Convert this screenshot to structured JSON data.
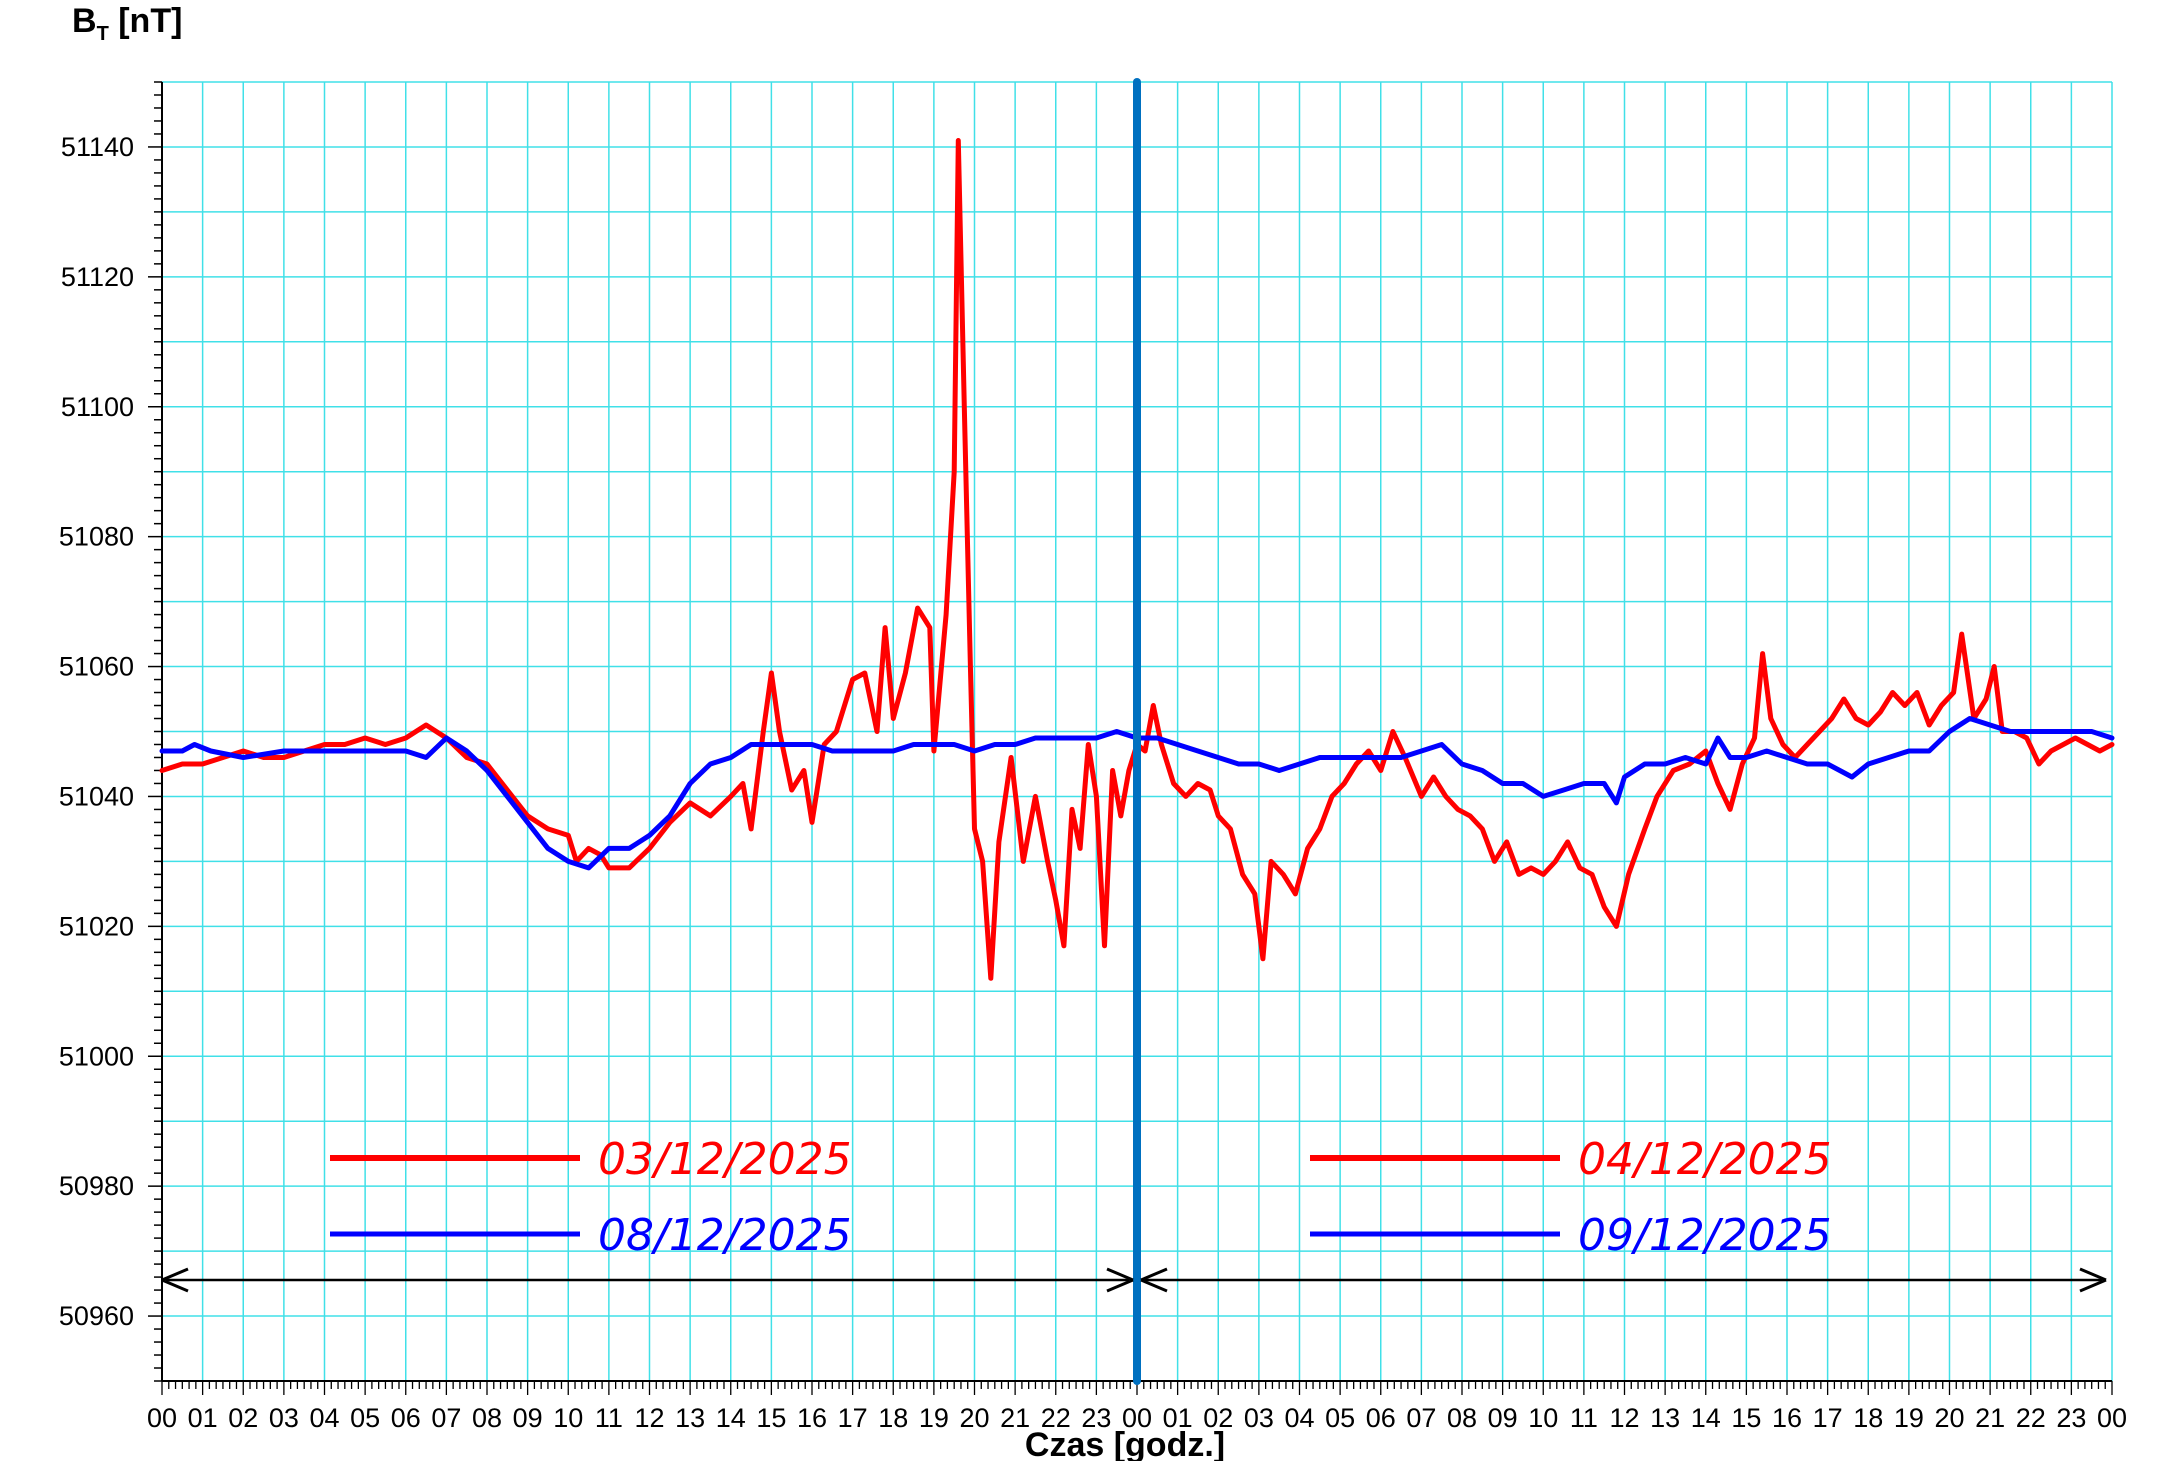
{
  "chart_data": {
    "type": "line",
    "ylabel": "B",
    "ylabel_sub": "T",
    "ylabel_unit": "[nT]",
    "xlabel": "Czas [godz.]",
    "ylim": [
      50950,
      51150
    ],
    "yticks": [
      50960,
      50980,
      51000,
      51020,
      51040,
      51060,
      51080,
      51100,
      51120,
      51140
    ],
    "xlim_hours": [
      0,
      48
    ],
    "xtick_labels": [
      "00",
      "01",
      "02",
      "03",
      "04",
      "05",
      "06",
      "07",
      "08",
      "09",
      "10",
      "11",
      "12",
      "13",
      "14",
      "15",
      "16",
      "17",
      "18",
      "19",
      "20",
      "21",
      "22",
      "23",
      "00",
      "01",
      "02",
      "03",
      "04",
      "05",
      "06",
      "07",
      "08",
      "09",
      "10",
      "11",
      "12",
      "13",
      "14",
      "15",
      "16",
      "17",
      "18",
      "19",
      "20",
      "21",
      "22",
      "23",
      "00"
    ],
    "grid": true,
    "divider_hour": 24,
    "colors": {
      "red": "#ff0000",
      "blue": "#0000ff",
      "divider": "#0070c0",
      "grid": "#40e0e8"
    },
    "legend": {
      "left": [
        {
          "label": "03/12/2025",
          "color": "#ff0000"
        },
        {
          "label": "08/12/2025",
          "color": "#0000ff"
        }
      ],
      "right": [
        {
          "label": "04/12/2025",
          "color": "#ff0000"
        },
        {
          "label": "09/12/2025",
          "color": "#0000ff"
        }
      ]
    },
    "series": [
      {
        "color": "#ff0000",
        "points": [
          [
            0,
            51044
          ],
          [
            0.5,
            51045
          ],
          [
            1,
            51045
          ],
          [
            1.5,
            51046
          ],
          [
            2,
            51047
          ],
          [
            2.5,
            51046
          ],
          [
            3,
            51046
          ],
          [
            3.5,
            51047
          ],
          [
            4,
            51048
          ],
          [
            4.5,
            51048
          ],
          [
            5,
            51049
          ],
          [
            5.5,
            51048
          ],
          [
            6,
            51049
          ],
          [
            6.5,
            51051
          ],
          [
            7,
            51049
          ],
          [
            7.5,
            51046
          ],
          [
            8,
            51045
          ],
          [
            8.5,
            51041
          ],
          [
            9,
            51037
          ],
          [
            9.5,
            51035
          ],
          [
            10,
            51034
          ],
          [
            10.2,
            51030
          ],
          [
            10.5,
            51032
          ],
          [
            10.8,
            51031
          ],
          [
            11,
            51029
          ],
          [
            11.5,
            51029
          ],
          [
            12,
            51032
          ],
          [
            12.5,
            51036
          ],
          [
            13,
            51039
          ],
          [
            13.5,
            51037
          ],
          [
            14,
            51040
          ],
          [
            14.3,
            51042
          ],
          [
            14.5,
            51035
          ],
          [
            14.8,
            51050
          ],
          [
            15,
            51059
          ],
          [
            15.2,
            51050
          ],
          [
            15.5,
            51041
          ],
          [
            15.8,
            51044
          ],
          [
            16,
            51036
          ],
          [
            16.3,
            51048
          ],
          [
            16.6,
            51050
          ],
          [
            17,
            51058
          ],
          [
            17.3,
            51059
          ],
          [
            17.6,
            51050
          ],
          [
            17.8,
            51066
          ],
          [
            18,
            51052
          ],
          [
            18.3,
            51059
          ],
          [
            18.6,
            51069
          ],
          [
            18.9,
            51066
          ],
          [
            19,
            51047
          ],
          [
            19.3,
            51068
          ],
          [
            19.5,
            51090
          ],
          [
            19.6,
            51141
          ],
          [
            19.75,
            51100
          ],
          [
            19.9,
            51060
          ],
          [
            20,
            51035
          ],
          [
            20.2,
            51030
          ],
          [
            20.4,
            51012
          ],
          [
            20.6,
            51033
          ],
          [
            20.9,
            51046
          ],
          [
            21.2,
            51030
          ],
          [
            21.5,
            51040
          ],
          [
            21.8,
            51030
          ],
          [
            22,
            51024
          ],
          [
            22.2,
            51017
          ],
          [
            22.4,
            51038
          ],
          [
            22.6,
            51032
          ],
          [
            22.8,
            51048
          ],
          [
            23,
            51040
          ],
          [
            23.2,
            51017
          ],
          [
            23.4,
            51044
          ],
          [
            23.6,
            51037
          ],
          [
            23.8,
            51044
          ],
          [
            24,
            51048
          ],
          [
            24.2,
            51047
          ],
          [
            24.4,
            51054
          ],
          [
            24.6,
            51048
          ],
          [
            24.9,
            51042
          ],
          [
            25.2,
            51040
          ],
          [
            25.5,
            51042
          ],
          [
            25.8,
            51041
          ],
          [
            26,
            51037
          ],
          [
            26.3,
            51035
          ],
          [
            26.6,
            51028
          ],
          [
            26.9,
            51025
          ],
          [
            27.1,
            51015
          ],
          [
            27.3,
            51030
          ],
          [
            27.6,
            51028
          ],
          [
            27.9,
            51025
          ],
          [
            28.2,
            51032
          ],
          [
            28.5,
            51035
          ],
          [
            28.8,
            51040
          ],
          [
            29.1,
            51042
          ],
          [
            29.4,
            51045
          ],
          [
            29.7,
            51047
          ],
          [
            30,
            51044
          ],
          [
            30.3,
            51050
          ],
          [
            30.6,
            51046
          ],
          [
            31,
            51040
          ],
          [
            31.3,
            51043
          ],
          [
            31.6,
            51040
          ],
          [
            31.9,
            51038
          ],
          [
            32.2,
            51037
          ],
          [
            32.5,
            51035
          ],
          [
            32.8,
            51030
          ],
          [
            33.1,
            51033
          ],
          [
            33.4,
            51028
          ],
          [
            33.7,
            51029
          ],
          [
            34,
            51028
          ],
          [
            34.3,
            51030
          ],
          [
            34.6,
            51033
          ],
          [
            34.9,
            51029
          ],
          [
            35.2,
            51028
          ],
          [
            35.5,
            51023
          ],
          [
            35.8,
            51020
          ],
          [
            36.1,
            51028
          ],
          [
            36.5,
            51035
          ],
          [
            36.8,
            51040
          ],
          [
            37.2,
            51044
          ],
          [
            37.6,
            51045
          ],
          [
            38,
            51047
          ],
          [
            38.3,
            51042
          ],
          [
            38.6,
            51038
          ],
          [
            38.9,
            51045
          ],
          [
            39.2,
            51049
          ],
          [
            39.4,
            51062
          ],
          [
            39.6,
            51052
          ],
          [
            39.9,
            51048
          ],
          [
            40.2,
            51046
          ],
          [
            40.5,
            51048
          ],
          [
            40.8,
            51050
          ],
          [
            41.1,
            51052
          ],
          [
            41.4,
            51055
          ],
          [
            41.7,
            51052
          ],
          [
            42,
            51051
          ],
          [
            42.3,
            51053
          ],
          [
            42.6,
            51056
          ],
          [
            42.9,
            51054
          ],
          [
            43.2,
            51056
          ],
          [
            43.5,
            51051
          ],
          [
            43.8,
            51054
          ],
          [
            44.1,
            51056
          ],
          [
            44.3,
            51065
          ],
          [
            44.6,
            51052
          ],
          [
            44.9,
            51055
          ],
          [
            45.1,
            51060
          ],
          [
            45.3,
            51050
          ],
          [
            45.6,
            51050
          ],
          [
            45.9,
            51049
          ],
          [
            46.2,
            51045
          ],
          [
            46.5,
            51047
          ],
          [
            46.8,
            51048
          ],
          [
            47.1,
            51049
          ],
          [
            47.4,
            51048
          ],
          [
            47.7,
            51047
          ],
          [
            48,
            51048
          ]
        ]
      },
      {
        "color": "#0000ff",
        "points": [
          [
            0,
            51047
          ],
          [
            0.5,
            51047
          ],
          [
            0.8,
            51048
          ],
          [
            1.2,
            51047
          ],
          [
            2,
            51046
          ],
          [
            3,
            51047
          ],
          [
            4,
            51047
          ],
          [
            5,
            51047
          ],
          [
            6,
            51047
          ],
          [
            6.5,
            51046
          ],
          [
            7,
            51049
          ],
          [
            7.5,
            51047
          ],
          [
            8,
            51044
          ],
          [
            8.5,
            51040
          ],
          [
            9,
            51036
          ],
          [
            9.5,
            51032
          ],
          [
            10,
            51030
          ],
          [
            10.5,
            51029
          ],
          [
            11,
            51032
          ],
          [
            11.5,
            51032
          ],
          [
            12,
            51034
          ],
          [
            12.5,
            51037
          ],
          [
            13,
            51042
          ],
          [
            13.5,
            51045
          ],
          [
            14,
            51046
          ],
          [
            14.5,
            51048
          ],
          [
            15,
            51048
          ],
          [
            15.5,
            51048
          ],
          [
            16,
            51048
          ],
          [
            16.5,
            51047
          ],
          [
            17,
            51047
          ],
          [
            17.5,
            51047
          ],
          [
            18,
            51047
          ],
          [
            18.5,
            51048
          ],
          [
            19,
            51048
          ],
          [
            19.5,
            51048
          ],
          [
            20,
            51047
          ],
          [
            20.5,
            51048
          ],
          [
            21,
            51048
          ],
          [
            21.5,
            51049
          ],
          [
            22,
            51049
          ],
          [
            22.5,
            51049
          ],
          [
            23,
            51049
          ],
          [
            23.5,
            51050
          ],
          [
            24,
            51049
          ],
          [
            24.5,
            51049
          ],
          [
            25,
            51048
          ],
          [
            25.5,
            51047
          ],
          [
            26,
            51046
          ],
          [
            26.5,
            51045
          ],
          [
            27,
            51045
          ],
          [
            27.5,
            51044
          ],
          [
            28,
            51045
          ],
          [
            28.5,
            51046
          ],
          [
            29,
            51046
          ],
          [
            29.5,
            51046
          ],
          [
            30,
            51046
          ],
          [
            30.5,
            51046
          ],
          [
            31,
            51047
          ],
          [
            31.5,
            51048
          ],
          [
            32,
            51045
          ],
          [
            32.5,
            51044
          ],
          [
            33,
            51042
          ],
          [
            33.5,
            51042
          ],
          [
            34,
            51040
          ],
          [
            34.5,
            51041
          ],
          [
            35,
            51042
          ],
          [
            35.5,
            51042
          ],
          [
            35.8,
            51039
          ],
          [
            36,
            51043
          ],
          [
            36.5,
            51045
          ],
          [
            37,
            51045
          ],
          [
            37.5,
            51046
          ],
          [
            38,
            51045
          ],
          [
            38.3,
            51049
          ],
          [
            38.6,
            51046
          ],
          [
            39,
            51046
          ],
          [
            39.5,
            51047
          ],
          [
            40,
            51046
          ],
          [
            40.5,
            51045
          ],
          [
            41,
            51045
          ],
          [
            41.3,
            51044
          ],
          [
            41.6,
            51043
          ],
          [
            42,
            51045
          ],
          [
            42.5,
            51046
          ],
          [
            43,
            51047
          ],
          [
            43.5,
            51047
          ],
          [
            44,
            51050
          ],
          [
            44.5,
            51052
          ],
          [
            45,
            51051
          ],
          [
            45.5,
            51050
          ],
          [
            46,
            51050
          ],
          [
            46.5,
            51050
          ],
          [
            47,
            51050
          ],
          [
            47.5,
            51050
          ],
          [
            48,
            51049
          ]
        ]
      }
    ]
  }
}
